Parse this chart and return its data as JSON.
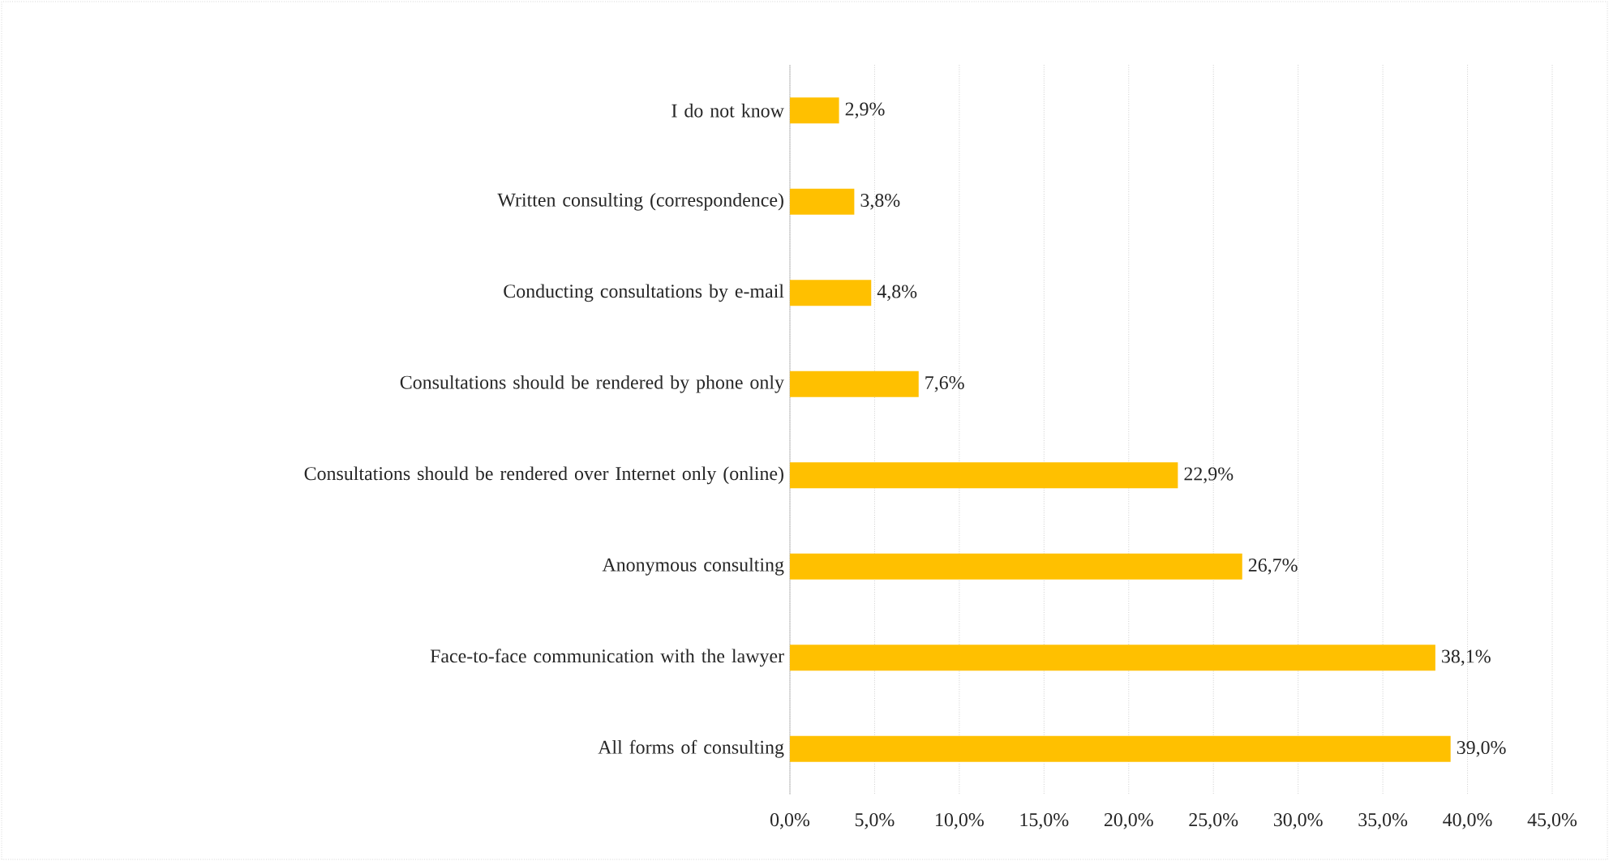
{
  "chart_data": {
    "type": "bar",
    "orientation": "horizontal",
    "categories": [
      "I do not know",
      "Written consulting (correspondence)",
      "Conducting consultations by e-mail",
      "Consultations should be rendered by phone only",
      "Consultations should be rendered over Internet only (online)",
      "Anonymous consulting",
      "Face-to-face communication with the lawyer",
      "All forms of consulting"
    ],
    "values": [
      2.9,
      3.8,
      4.8,
      7.6,
      22.9,
      26.7,
      38.1,
      39.0
    ],
    "value_labels": [
      "2,9%",
      "3,8%",
      "4,8%",
      "7,6%",
      "22,9%",
      "26,7%",
      "38,1%",
      "39,0%"
    ],
    "color": "#ffc000",
    "xlim": [
      0,
      45
    ],
    "xticks": [
      {
        "value": 0,
        "label": "0,0%"
      },
      {
        "value": 5,
        "label": "5,0%"
      },
      {
        "value": 10,
        "label": "10,0%"
      },
      {
        "value": 15,
        "label": "15,0%"
      },
      {
        "value": 20,
        "label": "20,0%"
      },
      {
        "value": 25,
        "label": "25,0%"
      },
      {
        "value": 30,
        "label": "30,0%"
      },
      {
        "value": 35,
        "label": "35,0%"
      },
      {
        "value": 40,
        "label": "40,0%"
      },
      {
        "value": 45,
        "label": "45,0%"
      }
    ],
    "grid": "x"
  }
}
